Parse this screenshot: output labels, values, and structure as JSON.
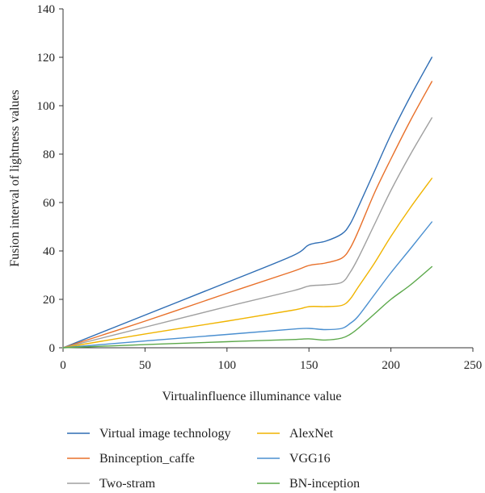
{
  "chart_data": {
    "type": "line",
    "title": "",
    "xlabel": "Virtualinfluence illuminance value",
    "ylabel": "Fusion interval of lightness values",
    "xlim": [
      0,
      250
    ],
    "ylim": [
      0,
      140
    ],
    "xticks": [
      0,
      50,
      100,
      150,
      200,
      250
    ],
    "yticks": [
      0,
      20,
      40,
      60,
      80,
      100,
      120,
      140
    ],
    "grid": false,
    "legend_position": "bottom",
    "series": [
      {
        "name": "Virtual image technology",
        "color": "#2E6DB4",
        "points": [
          [
            0,
            0
          ],
          [
            50,
            13.5
          ],
          [
            100,
            27
          ],
          [
            140,
            38
          ],
          [
            150,
            42.5
          ],
          [
            160,
            44
          ],
          [
            170,
            47
          ],
          [
            175,
            51
          ],
          [
            180,
            58
          ],
          [
            190,
            73
          ],
          [
            200,
            88
          ],
          [
            212,
            104
          ],
          [
            225,
            120
          ]
        ]
      },
      {
        "name": "Bninception_caffe",
        "color": "#E8702A",
        "points": [
          [
            0,
            0
          ],
          [
            50,
            11
          ],
          [
            100,
            22.5
          ],
          [
            140,
            31.5
          ],
          [
            150,
            34
          ],
          [
            160,
            35
          ],
          [
            170,
            37
          ],
          [
            175,
            41
          ],
          [
            180,
            48
          ],
          [
            190,
            64
          ],
          [
            200,
            78
          ],
          [
            212,
            94
          ],
          [
            225,
            110
          ]
        ]
      },
      {
        "name": "Two-stram",
        "color": "#A0A0A0",
        "points": [
          [
            0,
            0
          ],
          [
            50,
            8.5
          ],
          [
            100,
            17
          ],
          [
            140,
            23.5
          ],
          [
            150,
            25.5
          ],
          [
            160,
            26
          ],
          [
            170,
            27
          ],
          [
            175,
            31
          ],
          [
            180,
            37
          ],
          [
            190,
            51
          ],
          [
            200,
            65
          ],
          [
            212,
            80
          ],
          [
            225,
            95
          ]
        ]
      },
      {
        "name": "AlexNet",
        "color": "#F0B400",
        "points": [
          [
            0,
            0
          ],
          [
            50,
            5.7
          ],
          [
            100,
            11
          ],
          [
            140,
            15.5
          ],
          [
            150,
            17
          ],
          [
            160,
            17
          ],
          [
            170,
            17.5
          ],
          [
            175,
            20
          ],
          [
            180,
            25
          ],
          [
            190,
            35
          ],
          [
            200,
            46
          ],
          [
            212,
            58
          ],
          [
            225,
            70
          ]
        ]
      },
      {
        "name": "VGG16",
        "color": "#4A8FD0",
        "points": [
          [
            0,
            0
          ],
          [
            50,
            2.8
          ],
          [
            100,
            5.5
          ],
          [
            140,
            7.7
          ],
          [
            150,
            8
          ],
          [
            160,
            7.5
          ],
          [
            170,
            8
          ],
          [
            175,
            10
          ],
          [
            180,
            13
          ],
          [
            190,
            22
          ],
          [
            200,
            31
          ],
          [
            212,
            41
          ],
          [
            225,
            52
          ]
        ]
      },
      {
        "name": "BN-inception",
        "color": "#5BA84A",
        "points": [
          [
            0,
            0
          ],
          [
            50,
            1.3
          ],
          [
            100,
            2.5
          ],
          [
            140,
            3.4
          ],
          [
            150,
            3.7
          ],
          [
            160,
            3.2
          ],
          [
            170,
            4
          ],
          [
            175,
            5.5
          ],
          [
            180,
            8
          ],
          [
            190,
            14
          ],
          [
            200,
            20
          ],
          [
            212,
            26
          ],
          [
            225,
            33.5
          ]
        ]
      }
    ]
  }
}
